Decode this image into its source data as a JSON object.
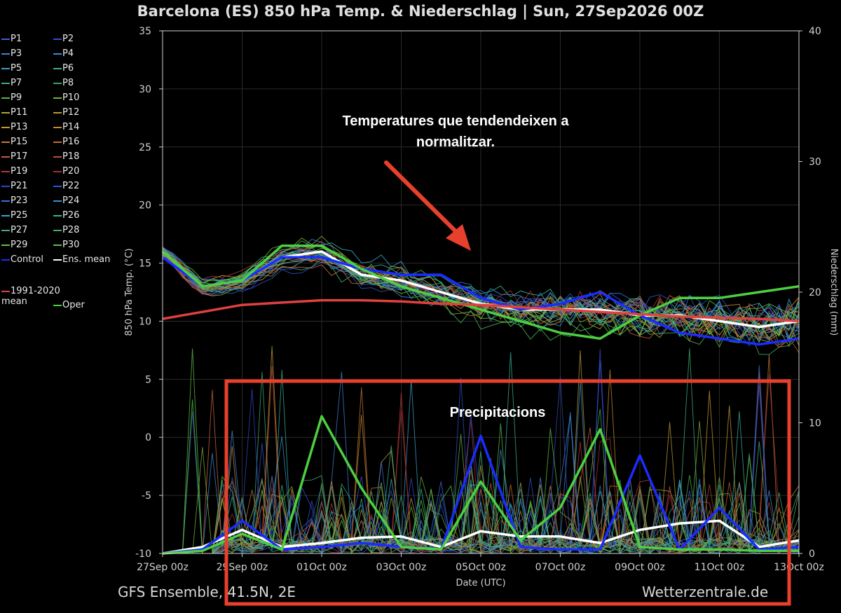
{
  "header": {
    "title": "Barcelona  (ES)  850 hPa Temp. & Niederschlag | Sun, 27Sep2026 00Z"
  },
  "footer": {
    "model": "GFS Ensemble, 41.5N, 2E",
    "source": "Wetterzentrale.de"
  },
  "annotations": {
    "temperature_note": "Temperatures que tendendeixen a normalitzar.",
    "precip_note": "Precipitacions"
  },
  "legend": {
    "items": [
      {
        "label": "P1",
        "color": "#3a5fd8"
      },
      {
        "label": "P2",
        "color": "#2f52c8"
      },
      {
        "label": "P3",
        "color": "#3f7ed8"
      },
      {
        "label": "P4",
        "color": "#3a8ad8"
      },
      {
        "label": "P5",
        "color": "#3aa0c8"
      },
      {
        "label": "P6",
        "color": "#3ab09a"
      },
      {
        "label": "P7",
        "color": "#3ab080"
      },
      {
        "label": "P8",
        "color": "#3aa860"
      },
      {
        "label": "P9",
        "color": "#5ab048"
      },
      {
        "label": "P10",
        "color": "#78b038"
      },
      {
        "label": "P11",
        "color": "#a8a838"
      },
      {
        "label": "P12",
        "color": "#b89c30"
      },
      {
        "label": "P13",
        "color": "#c89830"
      },
      {
        "label": "P14",
        "color": "#c88a30"
      },
      {
        "label": "P15",
        "color": "#c87a38"
      },
      {
        "label": "P16",
        "color": "#c86a38"
      },
      {
        "label": "P17",
        "color": "#c85a38"
      },
      {
        "label": "P18",
        "color": "#c04a38"
      },
      {
        "label": "P19",
        "color": "#b83838"
      },
      {
        "label": "P20",
        "color": "#a83030"
      },
      {
        "label": "P21",
        "color": "#3048c8"
      },
      {
        "label": "P22",
        "color": "#3058d0"
      },
      {
        "label": "P23",
        "color": "#3870d8"
      },
      {
        "label": "P24",
        "color": "#3890d0"
      },
      {
        "label": "P25",
        "color": "#38a8c0"
      },
      {
        "label": "P26",
        "color": "#38b098"
      },
      {
        "label": "P27",
        "color": "#40b078"
      },
      {
        "label": "P28",
        "color": "#48b058"
      },
      {
        "label": "P29",
        "color": "#60c040"
      },
      {
        "label": "P30",
        "color": "#58c048"
      },
      {
        "label": "Control",
        "color": "#1a2cff"
      },
      {
        "label": "Ens. mean",
        "color": "#ffffff"
      },
      {
        "label": "1991-2020\nmean",
        "color": "#e04040"
      },
      {
        "label": "Oper",
        "color": "#4cd040"
      }
    ]
  },
  "colors": {
    "background": "#000000",
    "control": "#1a2cff",
    "ens_mean": "#ffffff",
    "climate_mean": "#e04040",
    "oper": "#4cd040",
    "highlight_box": "#e8402c",
    "arrow": "#e8402c"
  },
  "chart_data": {
    "type": "line",
    "title": "Barcelona  (ES)  850 hPa Temp. & Niederschlag | Sun, 27Sep2026 00Z",
    "xlabel": "Date (UTC)",
    "ylabel": "850 hPa Temp. (°C)",
    "y2label": "Niederschlag (mm)",
    "xlim": [
      "27Sep 00z",
      "13Oct 00z"
    ],
    "ylim": [
      -10,
      35
    ],
    "y2lim": [
      0,
      40
    ],
    "x_ticks": [
      "27Sep 00z",
      "29Sep 00z",
      "01Oct 00z",
      "03Oct 00z",
      "05Oct 00z",
      "07Oct 00z",
      "09Oct 00z",
      "11Oct 00z",
      "13Oct 00z"
    ],
    "y_ticks": [
      35,
      30,
      25,
      20,
      15,
      10,
      5,
      0,
      -5,
      -10
    ],
    "y2_ticks": [
      40,
      30,
      20,
      10,
      0
    ],
    "grid": true,
    "legend_position": "left",
    "x_days": [
      0,
      1,
      2,
      3,
      4,
      5,
      6,
      7,
      8,
      9,
      10,
      11,
      12,
      13,
      14,
      15,
      16
    ],
    "series": [
      {
        "name": "Ens. mean",
        "axis": "temp",
        "values": [
          16.0,
          13.0,
          13.5,
          15.5,
          16.0,
          14.0,
          13.5,
          12.5,
          11.5,
          11.0,
          11.0,
          11.0,
          10.5,
          10.5,
          10.0,
          9.5,
          10.0
        ]
      },
      {
        "name": "Control",
        "axis": "temp",
        "values": [
          15.5,
          13.0,
          13.5,
          15.5,
          15.5,
          14.5,
          14.0,
          14.0,
          12.0,
          11.0,
          11.5,
          12.5,
          10.5,
          9.0,
          8.5,
          8.0,
          8.5
        ]
      },
      {
        "name": "Oper",
        "axis": "temp",
        "values": [
          16.0,
          13.0,
          13.5,
          16.5,
          16.5,
          14.5,
          13.0,
          12.0,
          11.0,
          10.0,
          9.0,
          8.5,
          10.5,
          12.0,
          12.0,
          12.5,
          13.0
        ]
      },
      {
        "name": "1991-2020\nmean",
        "axis": "temp",
        "values": [
          10.2,
          10.8,
          11.4,
          11.6,
          11.8,
          11.8,
          11.7,
          11.5,
          11.4,
          11.2,
          11.0,
          10.8,
          10.6,
          10.4,
          10.3,
          10.2,
          10.0
        ]
      },
      {
        "name": "Ens. mean",
        "axis": "precip",
        "values": [
          0.0,
          0.5,
          1.8,
          0.5,
          0.8,
          1.2,
          1.3,
          0.5,
          1.7,
          1.3,
          1.3,
          0.8,
          1.8,
          2.3,
          2.5,
          0.5,
          1.0
        ]
      },
      {
        "name": "Control",
        "axis": "precip",
        "values": [
          0.0,
          0.3,
          2.5,
          0.3,
          0.5,
          0.8,
          0.5,
          0.3,
          9.0,
          0.5,
          0.3,
          0.3,
          7.5,
          0.3,
          3.5,
          0.3,
          0.5
        ]
      },
      {
        "name": "Oper",
        "axis": "precip",
        "values": [
          0.0,
          0.2,
          1.5,
          0.3,
          10.5,
          5.0,
          0.5,
          0.3,
          5.5,
          1.0,
          3.5,
          9.5,
          0.5,
          0.3,
          0.3,
          0.2,
          0.2
        ]
      }
    ]
  }
}
